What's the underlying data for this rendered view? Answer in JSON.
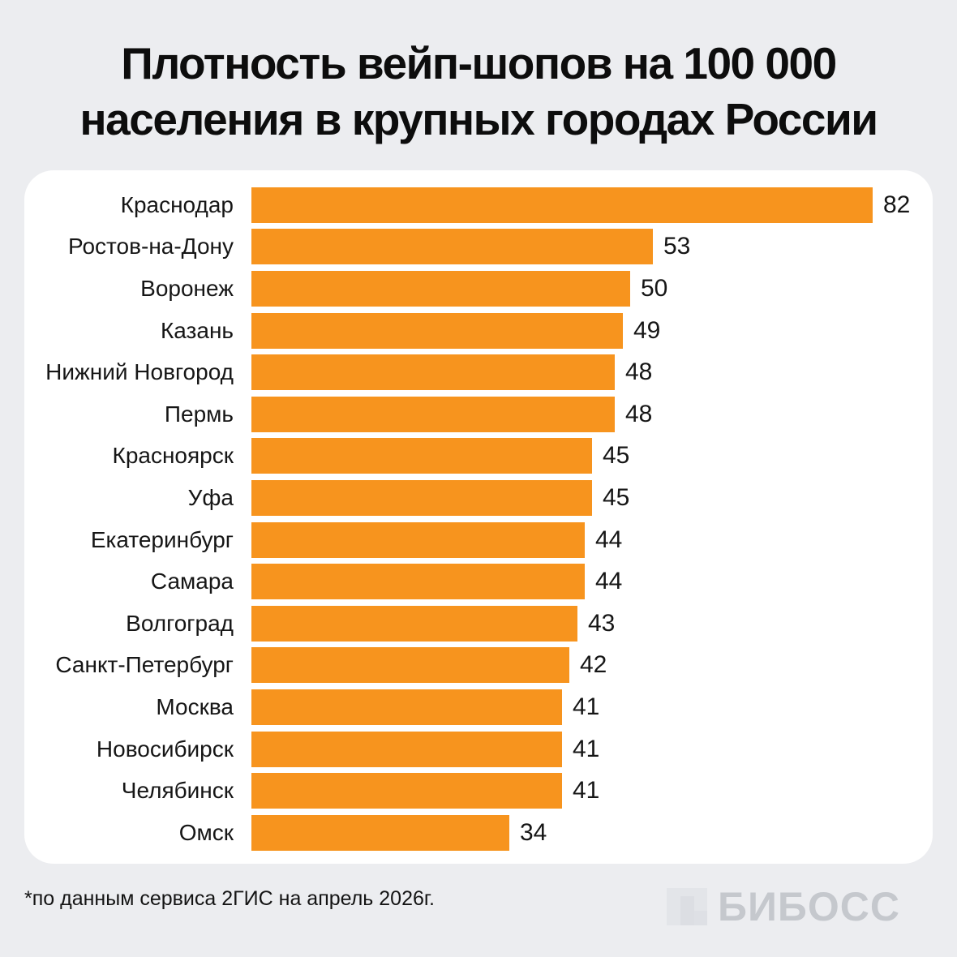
{
  "title": {
    "line1": "Плотность вейп-шопов на 100 000",
    "line2": "населения в крупных городах России"
  },
  "chart_data": {
    "type": "bar",
    "orientation": "horizontal",
    "title": "Плотность вейп-шопов на 100 000 населения в крупных городах России",
    "categories": [
      "Краснодар",
      "Ростов-на-Дону",
      "Воронеж",
      "Казань",
      "Нижний Новгород",
      "Пермь",
      "Красноярск",
      "Уфа",
      "Екатеринбург",
      "Самара",
      "Волгоград",
      "Санкт-Петербург",
      "Москва",
      "Новосибирск",
      "Челябинск",
      "Омск"
    ],
    "values": [
      82,
      53,
      50,
      49,
      48,
      48,
      45,
      45,
      44,
      44,
      43,
      42,
      41,
      41,
      41,
      34
    ],
    "xlim": [
      0,
      82
    ],
    "value_labels": true,
    "grid": false,
    "legend": false,
    "bar_color": "#F7941E"
  },
  "footer": {
    "footnote": "*по данным сервиса 2ГИС на апрель 2026г.",
    "logo_text": "БИБОСС"
  },
  "colors": {
    "background": "#ECEDF0",
    "card": "#FFFFFF",
    "bar": "#F7941E",
    "text": "#101010",
    "logo": "#C5C8CD"
  }
}
